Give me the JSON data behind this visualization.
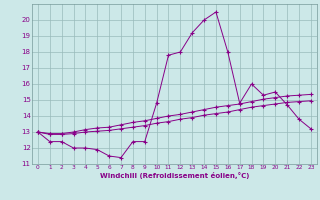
{
  "xlabel": "Windchill (Refroidissement éolien,°C)",
  "xlim": [
    -0.5,
    23.5
  ],
  "ylim": [
    11,
    21
  ],
  "yticks": [
    11,
    12,
    13,
    14,
    15,
    16,
    17,
    18,
    19,
    20
  ],
  "xticks": [
    0,
    1,
    2,
    3,
    4,
    5,
    6,
    7,
    8,
    9,
    10,
    11,
    12,
    13,
    14,
    15,
    16,
    17,
    18,
    19,
    20,
    21,
    22,
    23
  ],
  "bg_color": "#cce8e8",
  "grid_color": "#99bbbb",
  "line_color": "#880088",
  "line1_y": [
    13.0,
    12.4,
    12.4,
    12.0,
    12.0,
    11.9,
    11.5,
    11.4,
    12.4,
    12.4,
    14.8,
    17.8,
    18.0,
    19.2,
    20.0,
    20.5,
    18.0,
    14.8,
    16.0,
    15.3,
    15.5,
    14.7,
    13.8,
    13.2
  ],
  "line2_y": [
    13.0,
    12.9,
    12.9,
    13.0,
    13.15,
    13.25,
    13.3,
    13.45,
    13.6,
    13.7,
    13.85,
    14.0,
    14.1,
    14.25,
    14.4,
    14.55,
    14.65,
    14.75,
    14.9,
    15.05,
    15.15,
    15.25,
    15.3,
    15.35
  ],
  "line3_y": [
    13.0,
    12.85,
    12.85,
    12.9,
    13.0,
    13.05,
    13.1,
    13.2,
    13.3,
    13.4,
    13.55,
    13.65,
    13.8,
    13.9,
    14.05,
    14.15,
    14.25,
    14.4,
    14.55,
    14.65,
    14.75,
    14.85,
    14.9,
    14.95
  ]
}
